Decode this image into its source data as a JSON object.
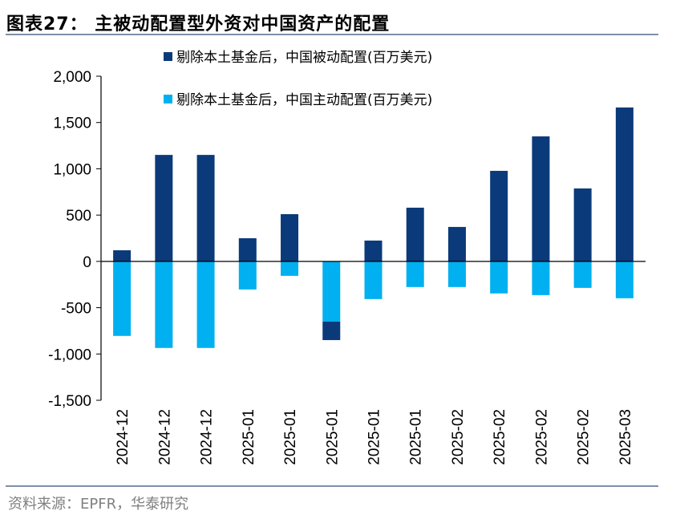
{
  "title": "图表27：  主被动配置型外资对中国资产的配置",
  "source": "资料来源：EPFR，华泰研究",
  "chart_data": {
    "type": "bar",
    "stacked": true,
    "categories": [
      "2024-12",
      "2024-12",
      "2024-12",
      "2025-01",
      "2025-01",
      "2025-01",
      "2025-01",
      "2025-01",
      "2025-02",
      "2025-02",
      "2025-02",
      "2025-02",
      "2025-03"
    ],
    "series": [
      {
        "name": "剔除本土基金后，中国被动配置(百万美元)",
        "color": "#0b3a7a",
        "values": [
          120,
          1150,
          1150,
          250,
          510,
          -200,
          225,
          580,
          372,
          978,
          1350,
          788,
          1662
        ]
      },
      {
        "name": "剔除本土基金后，中国主动配置(百万美元)",
        "color": "#00b0f0",
        "values": [
          -805,
          -935,
          -935,
          -303,
          -156,
          -650,
          -407,
          -277,
          -277,
          -346,
          -364,
          -286,
          -398
        ]
      }
    ],
    "ylim": [
      -1500,
      2000
    ],
    "yticks": [
      2000,
      1500,
      1000,
      500,
      0,
      -500,
      -1000,
      -1500
    ],
    "ytick_labels": [
      "2,000",
      "1,500",
      "1,000",
      "500",
      "0",
      "-500",
      "-1,000",
      "-1,500"
    ],
    "grid": false,
    "legend_placement": "top-left"
  }
}
